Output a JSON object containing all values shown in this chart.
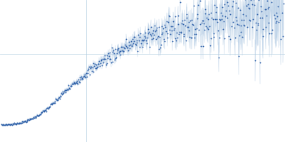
{
  "bg_color": "#ffffff",
  "error_color": "#a8c4e0",
  "point_color": "#2d5fa8",
  "point_size": 1.8,
  "figsize": [
    4.0,
    2.0
  ],
  "dpi": 100,
  "hline_rel": 0.62,
  "vline_rel": 0.3
}
